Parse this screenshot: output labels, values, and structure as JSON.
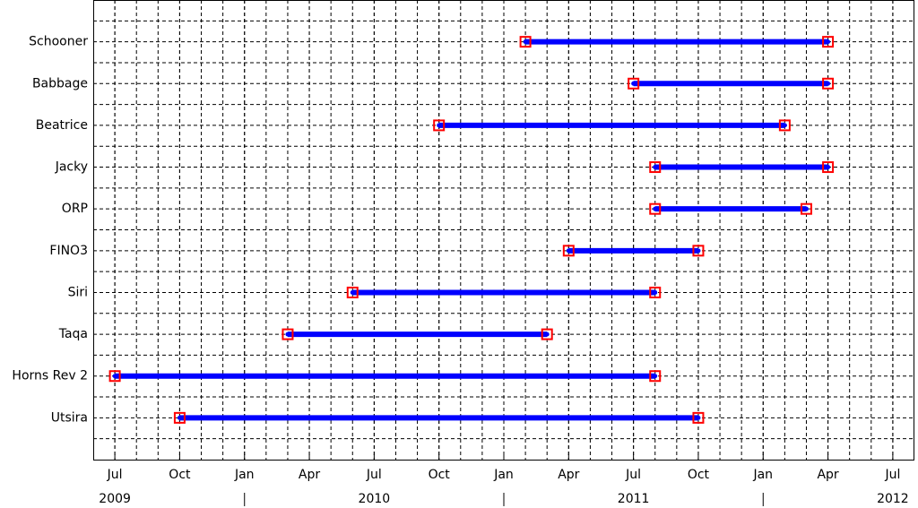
{
  "chart_data": {
    "type": "timeline",
    "categories": [
      "Schooner",
      "Babbage",
      "Beatrice",
      "Jacky",
      "ORP",
      "FINO3",
      "Siri",
      "Taqa",
      "Horns Rev 2",
      "Utsira"
    ],
    "start": [
      "2011-02",
      "2011-07",
      "2010-10",
      "2011-08",
      "2011-08",
      "2011-04",
      "2010-06",
      "2010-03",
      "2009-07",
      "2009-10"
    ],
    "end": [
      "2012-04",
      "2012-04",
      "2012-02",
      "2012-04",
      "2012-03",
      "2011-10",
      "2011-08",
      "2011-03",
      "2011-08",
      "2011-10"
    ],
    "color": "#0000ff",
    "marker_color": "#ff0000",
    "xlim": [
      "2009-06",
      "2012-08"
    ],
    "xticks": [
      {
        "value": "2009-07",
        "label": "Jul"
      },
      {
        "value": "2009-10",
        "label": "Oct"
      },
      {
        "value": "2010-01",
        "label": "Jan"
      },
      {
        "value": "2010-04",
        "label": "Apr"
      },
      {
        "value": "2010-07",
        "label": "Jul"
      },
      {
        "value": "2010-10",
        "label": "Oct"
      },
      {
        "value": "2011-01",
        "label": "Jan"
      },
      {
        "value": "2011-04",
        "label": "Apr"
      },
      {
        "value": "2011-07",
        "label": "Jul"
      },
      {
        "value": "2011-10",
        "label": "Oct"
      },
      {
        "value": "2012-01",
        "label": "Jan"
      },
      {
        "value": "2012-04",
        "label": "Apr"
      },
      {
        "value": "2012-07",
        "label": "Jul"
      }
    ],
    "year_labels": [
      {
        "value": "2009-07",
        "label": "2009"
      },
      {
        "value": "2010-07",
        "label": "2010"
      },
      {
        "value": "2011-07",
        "label": "2011"
      },
      {
        "value": "2012-07",
        "label": "2012"
      }
    ],
    "grid": true
  }
}
